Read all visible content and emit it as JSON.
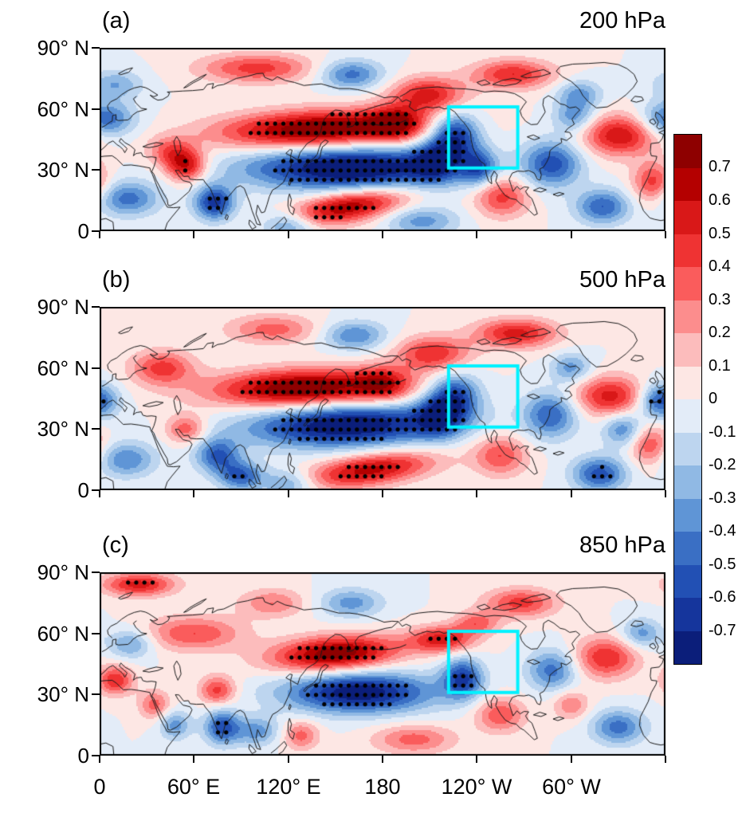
{
  "figure": {
    "x_tick_labels": [
      "0",
      "60° E",
      "120° E",
      "180",
      "120° W",
      "60° W"
    ],
    "y_tick_labels": [
      "90° N",
      "60° N",
      "30° N",
      "0"
    ],
    "panels": [
      {
        "label": "(a)",
        "level": "200 hPa"
      },
      {
        "label": "(b)",
        "level": "500 hPa"
      },
      {
        "label": "(c)",
        "level": "850 hPa"
      }
    ]
  },
  "chart_data": {
    "type": "heatmap",
    "subtype": "three stacked filled-contour latitude-longitude maps (0-90N, 0-360E) with coastlines, black stipple dots over strongly shaded regions, and a cyan highlight box over western North America / NE Pacific",
    "value_range_shown": [
      -0.7,
      0.7
    ],
    "axes": {
      "lon_ticks_deg": [
        0,
        60,
        120,
        180,
        240,
        300
      ],
      "lat_ticks_deg": [
        0,
        30,
        60,
        90
      ],
      "lon_range_deg": [
        0,
        360
      ],
      "lat_range_deg": [
        0,
        90
      ]
    },
    "colorbar": {
      "tick_labels": [
        "0.7",
        "0.6",
        "0.5",
        "0.4",
        "0.3",
        "0.2",
        "0.1",
        "0",
        "-0.1",
        "-0.2",
        "-0.3",
        "-0.4",
        "-0.5",
        "-0.6",
        "-0.7"
      ],
      "colors_top_to_bottom": [
        "#8e0000",
        "#b40000",
        "#d91818",
        "#ef3333",
        "#fa5c5c",
        "#fc8d8d",
        "#fcbcbc",
        "#fde7e4",
        "#e3ecf8",
        "#bdd5ef",
        "#90b9e4",
        "#5f95d6",
        "#3a6fc4",
        "#2250b4",
        "#15359c",
        "#0b1e7a"
      ]
    },
    "highlight_box": {
      "color": "#00f2ff",
      "lon_range": [
        222,
        266
      ],
      "lat_range": [
        31,
        61
      ]
    },
    "stipple": {
      "marker": "black dot",
      "abs_threshold": 0.45
    },
    "panels": [
      {
        "label": "(a)",
        "level": "200 hPa",
        "features": [
          {
            "lon": 140,
            "lat": 50,
            "amp": 0.85,
            "sx": 44,
            "sy": 6.5,
            "tilt": 0.03,
            "sig": true
          },
          {
            "lon": 188,
            "lat": 53,
            "amp": 0.45,
            "sx": 12,
            "sy": 6,
            "sig": true
          },
          {
            "lon": 160,
            "lat": 31,
            "amp": -0.9,
            "sx": 46,
            "sy": 7.5,
            "sig": true
          },
          {
            "lon": 213,
            "lat": 34,
            "amp": -0.45,
            "sx": 10,
            "sy": 7,
            "sig": true
          },
          {
            "lon": 158,
            "lat": 12,
            "amp": 0.7,
            "sx": 26,
            "sy": 5.5,
            "tilt": 0.12,
            "sig": true
          },
          {
            "lon": 226,
            "lat": 47,
            "amp": -0.7,
            "sx": 11,
            "sy": 8,
            "sig": true
          },
          {
            "lon": 241,
            "lat": 31,
            "amp": -0.45,
            "sx": 8,
            "sy": 6
          },
          {
            "lon": 209,
            "lat": 67,
            "amp": 0.55,
            "sx": 16,
            "sy": 6
          },
          {
            "lon": 331,
            "lat": 47,
            "amp": 0.6,
            "sx": 16,
            "sy": 7
          },
          {
            "lon": 288,
            "lat": 33,
            "amp": -0.55,
            "sx": 13,
            "sy": 8
          },
          {
            "lon": 55,
            "lat": 32,
            "amp": 0.6,
            "sx": 9,
            "sy": 5.5,
            "sig": true
          },
          {
            "lon": 45,
            "lat": 39,
            "amp": 0.35,
            "sx": 10,
            "sy": 5
          },
          {
            "lon": 73,
            "lat": 14,
            "amp": -0.65,
            "sx": 9,
            "sy": 6,
            "sig": true
          },
          {
            "lon": 18,
            "lat": 16,
            "amp": -0.45,
            "sx": 14,
            "sy": 6
          },
          {
            "lon": 3,
            "lat": 55,
            "amp": -0.5,
            "sx": 13,
            "sy": 6
          },
          {
            "lon": 100,
            "lat": 80,
            "amp": 0.45,
            "sx": 25,
            "sy": 5
          },
          {
            "lon": 160,
            "lat": 77,
            "amp": -0.45,
            "sx": 14,
            "sy": 5
          },
          {
            "lon": 263,
            "lat": 77,
            "amp": 0.5,
            "sx": 18,
            "sy": 5
          },
          {
            "lon": 305,
            "lat": 67,
            "amp": -0.35,
            "sx": 10,
            "sy": 5
          },
          {
            "lon": 352,
            "lat": 24,
            "amp": 0.45,
            "sx": 9,
            "sy": 7
          },
          {
            "lon": 320,
            "lat": 12,
            "amp": -0.5,
            "sx": 12,
            "sy": 6
          },
          {
            "lon": 256,
            "lat": 17,
            "amp": 0.45,
            "sx": 12,
            "sy": 7
          },
          {
            "lon": 120,
            "lat": 3,
            "amp": -0.4,
            "sx": 12,
            "sy": 5
          },
          {
            "lon": 205,
            "lat": 5,
            "amp": -0.35,
            "sx": 16,
            "sy": 5
          },
          {
            "lon": 302,
            "lat": 56,
            "amp": -0.35,
            "sx": 9,
            "sy": 5
          },
          {
            "lon": 10,
            "lat": 72,
            "amp": -0.3,
            "sx": 12,
            "sy": 5
          }
        ]
      },
      {
        "label": "(b)",
        "level": "500 hPa",
        "features": [
          {
            "lon": 130,
            "lat": 50,
            "amp": 0.85,
            "sx": 40,
            "sy": 6.5,
            "tilt": 0.02,
            "sig": true
          },
          {
            "lon": 180,
            "lat": 52,
            "amp": 0.4,
            "sx": 12,
            "sy": 6,
            "sig": true
          },
          {
            "lon": 158,
            "lat": 32,
            "amp": -0.85,
            "sx": 44,
            "sy": 7.5,
            "tilt": 0.02,
            "sig": true
          },
          {
            "lon": 215,
            "lat": 36,
            "amp": -0.45,
            "sx": 10,
            "sy": 7,
            "sig": true
          },
          {
            "lon": 172,
            "lat": 10,
            "amp": 0.65,
            "sx": 28,
            "sy": 5.5,
            "tilt": 0.1,
            "sig": true
          },
          {
            "lon": 226,
            "lat": 46,
            "amp": -0.6,
            "sx": 11,
            "sy": 8,
            "sig": true
          },
          {
            "lon": 212,
            "lat": 67,
            "amp": 0.5,
            "sx": 16,
            "sy": 6
          },
          {
            "lon": 325,
            "lat": 46,
            "amp": 0.55,
            "sx": 16,
            "sy": 7
          },
          {
            "lon": 287,
            "lat": 37,
            "amp": -0.5,
            "sx": 12,
            "sy": 8
          },
          {
            "lon": 40,
            "lat": 60,
            "amp": 0.45,
            "sx": 14,
            "sy": 6
          },
          {
            "lon": 357,
            "lat": 44,
            "amp": -0.6,
            "sx": 10,
            "sy": 6,
            "sig": true
          },
          {
            "lon": 55,
            "lat": 30,
            "amp": 0.4,
            "sx": 9,
            "sy": 5
          },
          {
            "lon": 75,
            "lat": 17,
            "amp": -0.5,
            "sx": 10,
            "sy": 6
          },
          {
            "lon": 90,
            "lat": 7,
            "amp": -0.5,
            "sx": 10,
            "sy": 5,
            "sig": true
          },
          {
            "lon": 17,
            "lat": 15,
            "amp": -0.4,
            "sx": 13,
            "sy": 6
          },
          {
            "lon": 110,
            "lat": 79,
            "amp": 0.35,
            "sx": 20,
            "sy": 5
          },
          {
            "lon": 162,
            "lat": 76,
            "amp": -0.4,
            "sx": 14,
            "sy": 5
          },
          {
            "lon": 265,
            "lat": 77,
            "amp": 0.55,
            "sx": 18,
            "sy": 5
          },
          {
            "lon": 318,
            "lat": 8,
            "amp": -0.55,
            "sx": 12,
            "sy": 6,
            "sig": true
          },
          {
            "lon": 350,
            "lat": 22,
            "amp": 0.4,
            "sx": 9,
            "sy": 7
          },
          {
            "lon": 255,
            "lat": 17,
            "amp": 0.4,
            "sx": 12,
            "sy": 7
          },
          {
            "lon": 333,
            "lat": 30,
            "amp": -0.4,
            "sx": 9,
            "sy": 6
          },
          {
            "lon": 300,
            "lat": 60,
            "amp": -0.35,
            "sx": 9,
            "sy": 5
          },
          {
            "lon": 120,
            "lat": 3,
            "amp": -0.35,
            "sx": 12,
            "sy": 5
          }
        ]
      },
      {
        "label": "(c)",
        "level": "850 hPa",
        "features": [
          {
            "lon": 150,
            "lat": 50,
            "amp": 0.8,
            "sx": 28,
            "sy": 6,
            "tilt": 0.05,
            "sig": true
          },
          {
            "lon": 218,
            "lat": 57,
            "amp": 0.55,
            "sx": 14,
            "sy": 4.5,
            "sig": true
          },
          {
            "lon": 165,
            "lat": 31,
            "amp": -0.8,
            "sx": 33,
            "sy": 7,
            "sig": true
          },
          {
            "lon": 231,
            "lat": 38,
            "amp": -0.6,
            "sx": 9,
            "sy": 7,
            "sig": true
          },
          {
            "lon": 25,
            "lat": 84,
            "amp": 0.55,
            "sx": 16,
            "sy": 4,
            "sig": true
          },
          {
            "lon": 60,
            "lat": 60,
            "amp": 0.4,
            "sx": 22,
            "sy": 6
          },
          {
            "lon": 10,
            "lat": 37,
            "amp": 0.5,
            "sx": 8,
            "sy": 5,
            "sig": true
          },
          {
            "lon": 78,
            "lat": 14,
            "amp": -0.55,
            "sx": 8,
            "sy": 6,
            "sig": true
          },
          {
            "lon": 75,
            "lat": 32,
            "amp": 0.45,
            "sx": 8,
            "sy": 5
          },
          {
            "lon": 322,
            "lat": 48,
            "amp": 0.5,
            "sx": 14,
            "sy": 7
          },
          {
            "lon": 288,
            "lat": 42,
            "amp": -0.45,
            "sx": 11,
            "sy": 7
          },
          {
            "lon": 268,
            "lat": 75,
            "amp": 0.45,
            "sx": 16,
            "sy": 5
          },
          {
            "lon": 330,
            "lat": 14,
            "amp": -0.45,
            "sx": 12,
            "sy": 6
          },
          {
            "lon": 255,
            "lat": 20,
            "amp": 0.4,
            "sx": 11,
            "sy": 6
          },
          {
            "lon": 200,
            "lat": 8,
            "amp": 0.35,
            "sx": 18,
            "sy": 5
          },
          {
            "lon": 100,
            "lat": 12,
            "amp": -0.35,
            "sx": 10,
            "sy": 5
          },
          {
            "lon": 128,
            "lat": 10,
            "amp": 0.35,
            "sx": 8,
            "sy": 5
          },
          {
            "lon": 35,
            "lat": 25,
            "amp": 0.35,
            "sx": 7,
            "sy": 5
          },
          {
            "lon": 48,
            "lat": 15,
            "amp": -0.35,
            "sx": 7,
            "sy": 5
          },
          {
            "lon": 20,
            "lat": 55,
            "amp": -0.35,
            "sx": 10,
            "sy": 5
          },
          {
            "lon": 345,
            "lat": 60,
            "amp": -0.35,
            "sx": 9,
            "sy": 5
          },
          {
            "lon": 160,
            "lat": 75,
            "amp": -0.35,
            "sx": 14,
            "sy": 5
          },
          {
            "lon": 110,
            "lat": 75,
            "amp": 0.3,
            "sx": 15,
            "sy": 5
          },
          {
            "lon": 300,
            "lat": 25,
            "amp": 0.3,
            "sx": 8,
            "sy": 5
          },
          {
            "lon": 240,
            "lat": 65,
            "amp": 0.35,
            "sx": 10,
            "sy": 4
          }
        ]
      }
    ]
  }
}
